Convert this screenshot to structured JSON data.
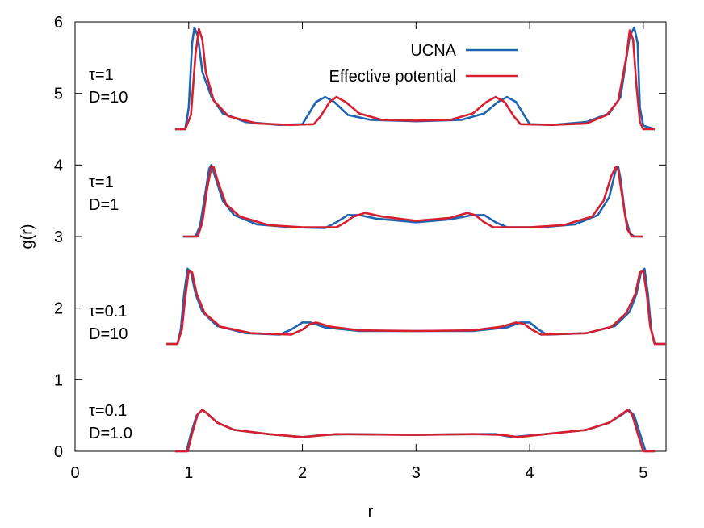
{
  "chart_data": {
    "type": "line",
    "title": "",
    "xlabel": "r",
    "ylabel": "g(r)",
    "xlim": [
      0,
      5.2
    ],
    "ylim": [
      0,
      6
    ],
    "xticks": [
      0,
      1,
      2,
      3,
      4,
      5
    ],
    "yticks": [
      0,
      1,
      2,
      3,
      4,
      5,
      6
    ],
    "grid": false,
    "legend_position": "top-right",
    "colors": {
      "ucna": "#1f64b0",
      "effective": "#d62030"
    },
    "series": [
      {
        "name": "UCNA",
        "color": "#1f64b0"
      },
      {
        "name": "Effective potential",
        "color": "#d62030"
      }
    ],
    "annotations": [
      {
        "line1": "τ=1",
        "line2": "D=10"
      },
      {
        "line1": "τ=1",
        "line2": "D=1"
      },
      {
        "line1": "τ=0.1",
        "line2": "D=10"
      },
      {
        "line1": "τ=0.1",
        "line2": "D=1.0"
      }
    ],
    "panels": [
      {
        "ucna": [
          [
            0.88,
            4.5
          ],
          [
            0.97,
            4.5
          ],
          [
            1.0,
            4.8
          ],
          [
            1.03,
            5.7
          ],
          [
            1.05,
            5.92
          ],
          [
            1.08,
            5.8
          ],
          [
            1.12,
            5.3
          ],
          [
            1.2,
            4.95
          ],
          [
            1.3,
            4.72
          ],
          [
            1.5,
            4.6
          ],
          [
            1.8,
            4.56
          ],
          [
            2.0,
            4.57
          ],
          [
            2.05,
            4.7
          ],
          [
            2.12,
            4.88
          ],
          [
            2.2,
            4.95
          ],
          [
            2.28,
            4.88
          ],
          [
            2.4,
            4.7
          ],
          [
            2.6,
            4.63
          ],
          [
            3.0,
            4.61
          ],
          [
            3.4,
            4.63
          ],
          [
            3.6,
            4.72
          ],
          [
            3.72,
            4.88
          ],
          [
            3.8,
            4.95
          ],
          [
            3.88,
            4.88
          ],
          [
            3.95,
            4.7
          ],
          [
            4.0,
            4.57
          ],
          [
            4.2,
            4.56
          ],
          [
            4.5,
            4.6
          ],
          [
            4.7,
            4.72
          ],
          [
            4.8,
            4.95
          ],
          [
            4.88,
            5.8
          ],
          [
            4.92,
            5.92
          ],
          [
            4.95,
            5.7
          ],
          [
            4.97,
            4.8
          ],
          [
            5.0,
            4.55
          ],
          [
            5.1,
            4.5
          ]
        ],
        "effective": [
          [
            0.88,
            4.5
          ],
          [
            0.97,
            4.5
          ],
          [
            1.02,
            4.7
          ],
          [
            1.06,
            5.55
          ],
          [
            1.09,
            5.9
          ],
          [
            1.12,
            5.75
          ],
          [
            1.15,
            5.3
          ],
          [
            1.22,
            4.9
          ],
          [
            1.35,
            4.68
          ],
          [
            1.6,
            4.58
          ],
          [
            1.9,
            4.56
          ],
          [
            2.1,
            4.57
          ],
          [
            2.16,
            4.68
          ],
          [
            2.24,
            4.88
          ],
          [
            2.3,
            4.95
          ],
          [
            2.38,
            4.88
          ],
          [
            2.5,
            4.72
          ],
          [
            2.7,
            4.63
          ],
          [
            3.0,
            4.62
          ],
          [
            3.3,
            4.63
          ],
          [
            3.5,
            4.72
          ],
          [
            3.62,
            4.88
          ],
          [
            3.7,
            4.95
          ],
          [
            3.78,
            4.88
          ],
          [
            3.86,
            4.68
          ],
          [
            3.92,
            4.57
          ],
          [
            4.2,
            4.56
          ],
          [
            4.5,
            4.58
          ],
          [
            4.68,
            4.7
          ],
          [
            4.78,
            4.9
          ],
          [
            4.85,
            5.5
          ],
          [
            4.88,
            5.88
          ],
          [
            4.91,
            5.75
          ],
          [
            4.94,
            5.1
          ],
          [
            4.97,
            4.6
          ],
          [
            5.0,
            4.5
          ],
          [
            5.1,
            4.5
          ]
        ]
      },
      {
        "ucna": [
          [
            0.95,
            3.0
          ],
          [
            1.06,
            3.0
          ],
          [
            1.1,
            3.15
          ],
          [
            1.14,
            3.55
          ],
          [
            1.18,
            3.95
          ],
          [
            1.2,
            4.0
          ],
          [
            1.23,
            3.85
          ],
          [
            1.3,
            3.5
          ],
          [
            1.4,
            3.3
          ],
          [
            1.6,
            3.17
          ],
          [
            1.9,
            3.13
          ],
          [
            2.2,
            3.12
          ],
          [
            2.3,
            3.2
          ],
          [
            2.4,
            3.3
          ],
          [
            2.5,
            3.3
          ],
          [
            2.65,
            3.25
          ],
          [
            3.0,
            3.2
          ],
          [
            3.3,
            3.24
          ],
          [
            3.5,
            3.3
          ],
          [
            3.6,
            3.3
          ],
          [
            3.7,
            3.2
          ],
          [
            3.8,
            3.13
          ],
          [
            4.1,
            3.13
          ],
          [
            4.4,
            3.17
          ],
          [
            4.6,
            3.3
          ],
          [
            4.7,
            3.55
          ],
          [
            4.76,
            3.95
          ],
          [
            4.78,
            3.97
          ],
          [
            4.8,
            3.8
          ],
          [
            4.84,
            3.3
          ],
          [
            4.88,
            3.05
          ],
          [
            4.92,
            3.0
          ],
          [
            5.0,
            3.0
          ]
        ],
        "effective": [
          [
            0.95,
            3.0
          ],
          [
            1.08,
            3.0
          ],
          [
            1.12,
            3.2
          ],
          [
            1.16,
            3.65
          ],
          [
            1.2,
            3.98
          ],
          [
            1.22,
            3.97
          ],
          [
            1.26,
            3.75
          ],
          [
            1.33,
            3.45
          ],
          [
            1.45,
            3.28
          ],
          [
            1.7,
            3.16
          ],
          [
            2.0,
            3.13
          ],
          [
            2.3,
            3.13
          ],
          [
            2.38,
            3.2
          ],
          [
            2.45,
            3.28
          ],
          [
            2.55,
            3.33
          ],
          [
            2.7,
            3.28
          ],
          [
            3.0,
            3.22
          ],
          [
            3.3,
            3.26
          ],
          [
            3.45,
            3.33
          ],
          [
            3.52,
            3.3
          ],
          [
            3.6,
            3.2
          ],
          [
            3.68,
            3.13
          ],
          [
            4.0,
            3.13
          ],
          [
            4.3,
            3.16
          ],
          [
            4.55,
            3.28
          ],
          [
            4.65,
            3.5
          ],
          [
            4.72,
            3.85
          ],
          [
            4.76,
            3.98
          ],
          [
            4.78,
            3.92
          ],
          [
            4.82,
            3.5
          ],
          [
            4.86,
            3.1
          ],
          [
            4.9,
            3.0
          ],
          [
            5.0,
            3.0
          ]
        ]
      },
      {
        "ucna": [
          [
            0.8,
            1.5
          ],
          [
            0.9,
            1.5
          ],
          [
            0.93,
            1.7
          ],
          [
            0.96,
            2.2
          ],
          [
            0.99,
            2.55
          ],
          [
            1.02,
            2.5
          ],
          [
            1.06,
            2.2
          ],
          [
            1.12,
            1.95
          ],
          [
            1.25,
            1.75
          ],
          [
            1.5,
            1.65
          ],
          [
            1.8,
            1.63
          ],
          [
            1.9,
            1.7
          ],
          [
            2.0,
            1.8
          ],
          [
            2.07,
            1.8
          ],
          [
            2.2,
            1.73
          ],
          [
            2.5,
            1.68
          ],
          [
            3.0,
            1.68
          ],
          [
            3.5,
            1.68
          ],
          [
            3.8,
            1.73
          ],
          [
            3.92,
            1.8
          ],
          [
            4.0,
            1.8
          ],
          [
            4.08,
            1.7
          ],
          [
            4.15,
            1.63
          ],
          [
            4.5,
            1.65
          ],
          [
            4.75,
            1.75
          ],
          [
            4.88,
            1.95
          ],
          [
            4.94,
            2.2
          ],
          [
            4.98,
            2.5
          ],
          [
            5.01,
            2.55
          ],
          [
            5.04,
            2.2
          ],
          [
            5.07,
            1.7
          ],
          [
            5.1,
            1.5
          ],
          [
            5.2,
            1.5
          ]
        ],
        "effective": [
          [
            0.8,
            1.5
          ],
          [
            0.9,
            1.5
          ],
          [
            0.94,
            1.7
          ],
          [
            0.97,
            2.15
          ],
          [
            1.0,
            2.52
          ],
          [
            1.03,
            2.5
          ],
          [
            1.07,
            2.2
          ],
          [
            1.14,
            1.93
          ],
          [
            1.28,
            1.74
          ],
          [
            1.55,
            1.65
          ],
          [
            1.9,
            1.63
          ],
          [
            2.0,
            1.7
          ],
          [
            2.07,
            1.78
          ],
          [
            2.12,
            1.8
          ],
          [
            2.25,
            1.74
          ],
          [
            2.5,
            1.69
          ],
          [
            3.0,
            1.68
          ],
          [
            3.5,
            1.69
          ],
          [
            3.75,
            1.74
          ],
          [
            3.88,
            1.8
          ],
          [
            3.95,
            1.78
          ],
          [
            4.02,
            1.7
          ],
          [
            4.1,
            1.63
          ],
          [
            4.5,
            1.65
          ],
          [
            4.72,
            1.74
          ],
          [
            4.85,
            1.93
          ],
          [
            4.93,
            2.2
          ],
          [
            4.97,
            2.5
          ],
          [
            5.0,
            2.52
          ],
          [
            5.03,
            2.2
          ],
          [
            5.06,
            1.75
          ],
          [
            5.1,
            1.5
          ],
          [
            5.2,
            1.5
          ]
        ]
      },
      {
        "ucna": [
          [
            0.88,
            0.0
          ],
          [
            0.98,
            0.0
          ],
          [
            1.02,
            0.25
          ],
          [
            1.07,
            0.5
          ],
          [
            1.12,
            0.58
          ],
          [
            1.17,
            0.52
          ],
          [
            1.25,
            0.4
          ],
          [
            1.4,
            0.3
          ],
          [
            1.7,
            0.24
          ],
          [
            2.0,
            0.2
          ],
          [
            2.2,
            0.23
          ],
          [
            2.4,
            0.24
          ],
          [
            3.0,
            0.23
          ],
          [
            3.5,
            0.24
          ],
          [
            3.7,
            0.24
          ],
          [
            3.85,
            0.2
          ],
          [
            4.2,
            0.25
          ],
          [
            4.5,
            0.3
          ],
          [
            4.7,
            0.4
          ],
          [
            4.82,
            0.52
          ],
          [
            4.87,
            0.58
          ],
          [
            4.92,
            0.5
          ],
          [
            4.97,
            0.25
          ],
          [
            5.02,
            0.0
          ],
          [
            5.1,
            0.0
          ]
        ],
        "effective": [
          [
            0.88,
            0.0
          ],
          [
            0.99,
            0.0
          ],
          [
            1.03,
            0.25
          ],
          [
            1.08,
            0.52
          ],
          [
            1.12,
            0.58
          ],
          [
            1.16,
            0.53
          ],
          [
            1.25,
            0.4
          ],
          [
            1.4,
            0.3
          ],
          [
            1.7,
            0.24
          ],
          [
            2.0,
            0.2
          ],
          [
            2.15,
            0.22
          ],
          [
            2.3,
            0.24
          ],
          [
            3.0,
            0.23
          ],
          [
            3.5,
            0.24
          ],
          [
            3.75,
            0.23
          ],
          [
            3.9,
            0.2
          ],
          [
            4.2,
            0.25
          ],
          [
            4.5,
            0.3
          ],
          [
            4.7,
            0.4
          ],
          [
            4.82,
            0.53
          ],
          [
            4.86,
            0.58
          ],
          [
            4.9,
            0.52
          ],
          [
            4.95,
            0.25
          ],
          [
            5.0,
            0.0
          ],
          [
            5.1,
            0.0
          ]
        ]
      }
    ]
  }
}
